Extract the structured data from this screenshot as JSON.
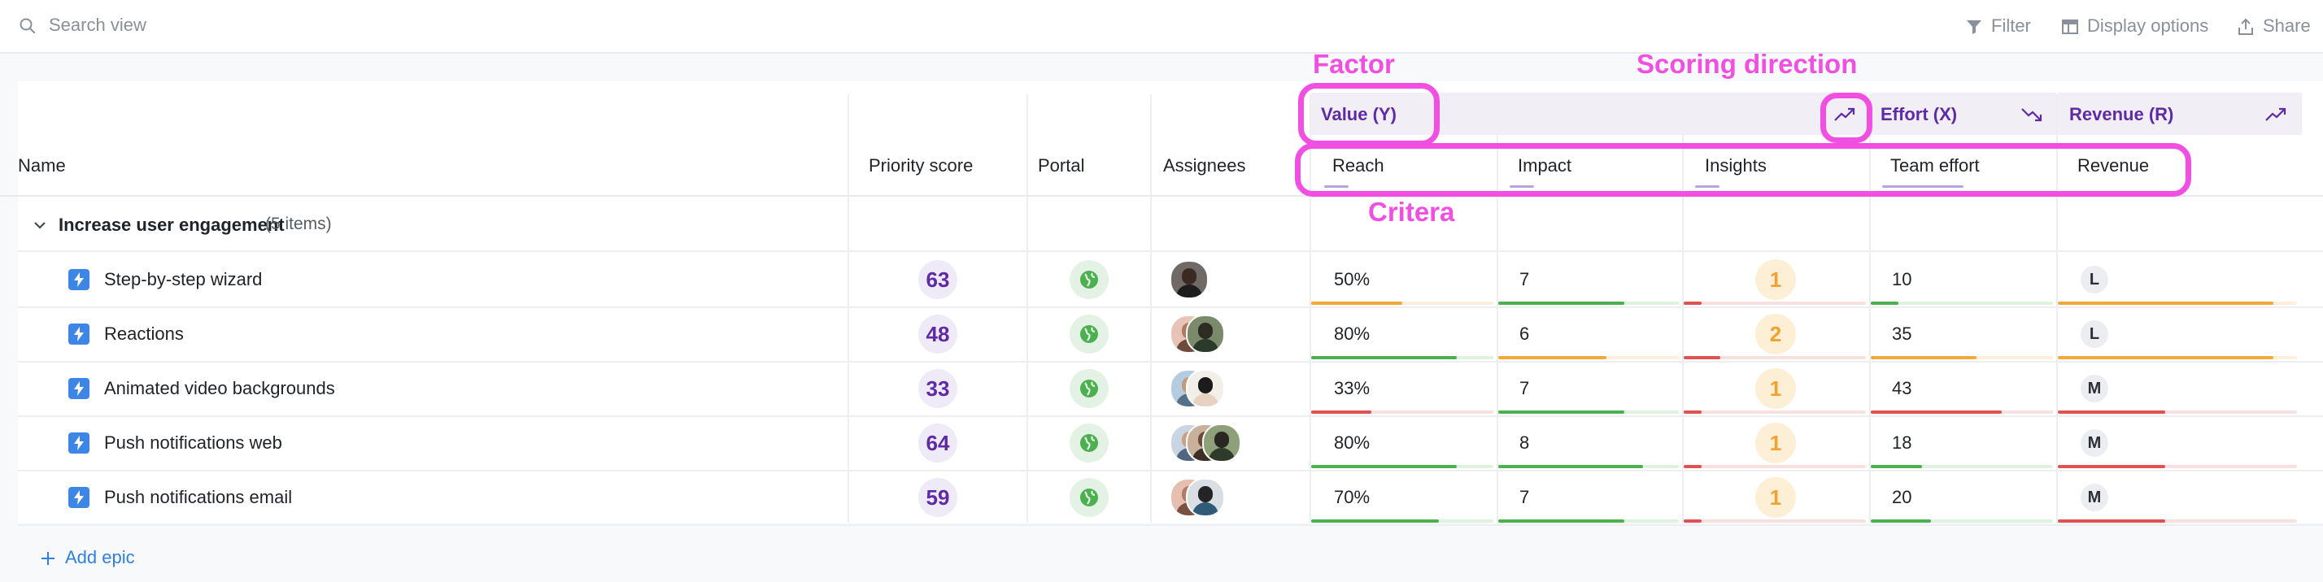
{
  "toolbar": {
    "search_placeholder": "Search view",
    "filter_label": "Filter",
    "display_options_label": "Display options",
    "share_label": "Share"
  },
  "columns": {
    "name": "Name",
    "priority_score": "Priority score",
    "portal": "Portal",
    "assignees": "Assignees"
  },
  "factors": [
    {
      "label": "Value (Y)",
      "direction": "up"
    },
    {
      "label": "Effort (X)",
      "direction": "down"
    },
    {
      "label": "Revenue (R)",
      "direction": "up"
    }
  ],
  "criteria": [
    "Reach",
    "Impact",
    "Insights",
    "Team effort",
    "Revenue"
  ],
  "group": {
    "title": "Increase user engagement",
    "count": "(5 items)"
  },
  "rows": [
    {
      "name": "Step-by-step wizard",
      "score": "63",
      "assignee_count": 1,
      "reach": "50%",
      "reach_pct": 50,
      "impact": "7",
      "impact_pct": 70,
      "insights": "1",
      "insights_pct": 10,
      "team_effort": "10",
      "team_effort_pct": 15,
      "revenue": "L",
      "revenue_pct": 90
    },
    {
      "name": "Reactions",
      "score": "48",
      "assignee_count": 2,
      "reach": "80%",
      "reach_pct": 80,
      "impact": "6",
      "impact_pct": 60,
      "insights": "2",
      "insights_pct": 20,
      "team_effort": "35",
      "team_effort_pct": 58,
      "revenue": "L",
      "revenue_pct": 90
    },
    {
      "name": "Animated video backgrounds",
      "score": "33",
      "assignee_count": 2,
      "reach": "33%",
      "reach_pct": 33,
      "impact": "7",
      "impact_pct": 70,
      "insights": "1",
      "insights_pct": 10,
      "team_effort": "43",
      "team_effort_pct": 72,
      "revenue": "M",
      "revenue_pct": 45
    },
    {
      "name": "Push notifications web",
      "score": "64",
      "assignee_count": 3,
      "reach": "80%",
      "reach_pct": 80,
      "impact": "8",
      "impact_pct": 80,
      "insights": "1",
      "insights_pct": 10,
      "team_effort": "18",
      "team_effort_pct": 28,
      "revenue": "M",
      "revenue_pct": 45
    },
    {
      "name": "Push notifications email",
      "score": "59",
      "assignee_count": 2,
      "reach": "70%",
      "reach_pct": 70,
      "impact": "7",
      "impact_pct": 70,
      "insights": "1",
      "insights_pct": 10,
      "team_effort": "20",
      "team_effort_pct": 33,
      "revenue": "M",
      "revenue_pct": 45
    }
  ],
  "add_epic_label": "Add epic",
  "annotations": {
    "factor": "Factor",
    "scoring_direction": "Scoring direction",
    "criteria": "Critera"
  },
  "colors": {
    "accent_purple": "#5e2aa6",
    "annotation_magenta": "#f04fe2",
    "bar_green": "#4caf50",
    "bar_orange": "#f2a93b",
    "bar_red": "#e05252",
    "link_blue": "#2f7fe0"
  }
}
